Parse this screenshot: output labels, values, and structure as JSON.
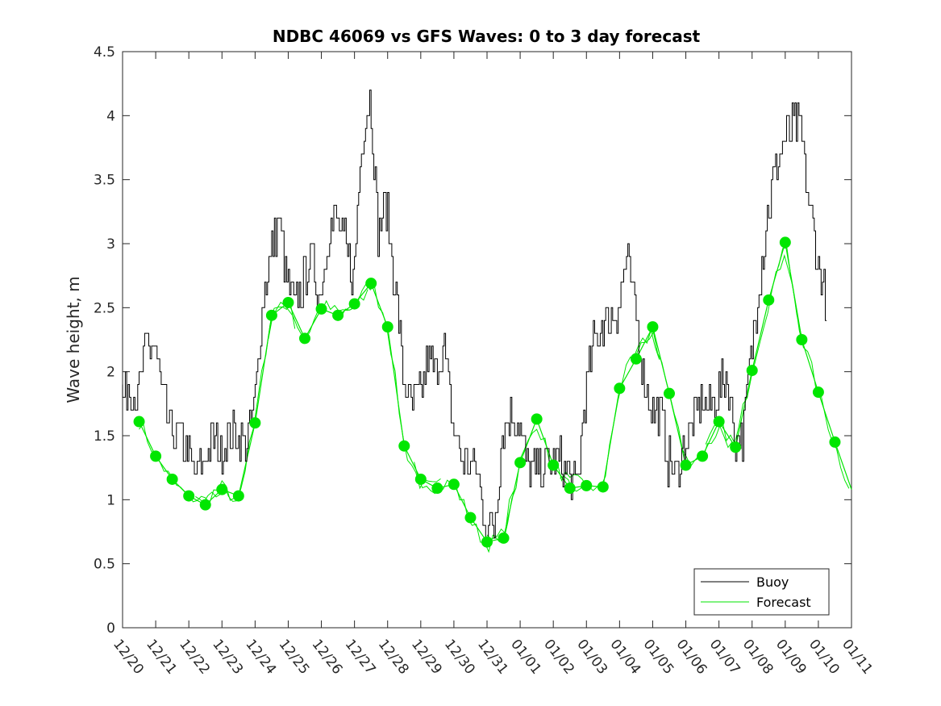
{
  "chart_data": {
    "type": "line",
    "title": "NDBC 46069 vs GFS Waves: 0 to 3 day forecast",
    "xlabel": "",
    "ylabel": "Wave height, m",
    "ylim": [
      0,
      4.5
    ],
    "yticks": [
      "0",
      "0.5",
      "1",
      "1.5",
      "2",
      "2.5",
      "3",
      "3.5",
      "4",
      "4.5"
    ],
    "xlim_days": [
      0,
      22
    ],
    "xticks": [
      "12/20",
      "12/21",
      "12/22",
      "12/23",
      "12/24",
      "12/25",
      "12/26",
      "12/27",
      "12/28",
      "12/29",
      "12/30",
      "12/31",
      "01/01",
      "01/02",
      "01/03",
      "01/04",
      "01/05",
      "01/06",
      "01/07",
      "01/08",
      "01/09",
      "01/10",
      "01/11"
    ],
    "legend": {
      "position": "bottom-right",
      "entries": [
        "Buoy",
        "Forecast"
      ]
    },
    "colors": {
      "buoy": "#000000",
      "forecast": "#00e600",
      "axis": "#262626"
    },
    "series": [
      {
        "name": "Buoy",
        "x": [
          0,
          0.25,
          0.5,
          0.75,
          1,
          1.25,
          1.5,
          1.75,
          2,
          2.25,
          2.5,
          2.75,
          3,
          3.25,
          3.5,
          3.75,
          4,
          4.25,
          4.5,
          4.75,
          5,
          5.25,
          5.5,
          5.75,
          6,
          6.25,
          6.5,
          6.75,
          7,
          7.25,
          7.5,
          7.75,
          8,
          8.25,
          8.5,
          8.75,
          9,
          9.25,
          9.5,
          9.75,
          10,
          10.25,
          10.5,
          10.75,
          11,
          11.25,
          11.5,
          11.75,
          12,
          12.25,
          12.5,
          12.75,
          13,
          13.25,
          13.5,
          13.75,
          14,
          14.25,
          14.5,
          14.75,
          15,
          15.25,
          15.5,
          15.75,
          16,
          16.25,
          16.5,
          16.75,
          17,
          17.25,
          17.5,
          17.75,
          18,
          18.25,
          18.5,
          18.75,
          19,
          19.25,
          19.5,
          19.75,
          20,
          20.25,
          20.5,
          20.75,
          21,
          21.25
        ],
        "values": [
          1.8,
          1.9,
          1.8,
          2.2,
          2.2,
          1.8,
          1.5,
          1.5,
          1.4,
          1.2,
          1.3,
          1.5,
          1.4,
          1.5,
          1.5,
          1.4,
          1.7,
          2.5,
          2.9,
          3.2,
          2.7,
          2.5,
          2.7,
          2.9,
          2.6,
          3.1,
          3.2,
          3.0,
          2.7,
          3.8,
          4.2,
          3.1,
          3.3,
          2.7,
          2.0,
          1.7,
          1.8,
          2.1,
          2.0,
          2.2,
          1.6,
          1.3,
          1.3,
          1.2,
          0.8,
          0.8,
          1.5,
          1.7,
          1.6,
          1.3,
          1.2,
          1.3,
          1.3,
          1.3,
          1.2,
          1.1,
          1.8,
          2.2,
          2.4,
          2.4,
          2.5,
          2.9,
          2.5,
          2.0,
          1.7,
          1.7,
          1.3,
          1.2,
          1.4,
          1.6,
          1.8,
          1.7,
          1.8,
          2.0,
          1.5,
          1.5,
          2.1,
          2.7,
          3.2,
          3.6,
          3.8,
          3.9,
          3.9,
          3.3,
          2.9,
          2.6
        ]
      },
      {
        "name": "Forecast",
        "x": [
          0.5,
          1,
          1.5,
          2,
          2.5,
          3,
          3.5,
          4,
          4.5,
          5,
          5.5,
          6,
          6.5,
          7,
          7.5,
          8,
          8.5,
          9,
          9.5,
          10,
          10.5,
          11,
          11.5,
          12,
          12.5,
          13,
          13.5,
          14,
          14.5,
          15,
          15.5,
          16,
          16.5,
          17,
          17.5,
          18,
          18.5,
          19,
          19.5,
          20,
          20.5,
          21,
          21.5,
          22
        ],
        "values": [
          1.61,
          1.34,
          1.16,
          1.03,
          0.96,
          1.08,
          1.03,
          1.6,
          2.44,
          2.54,
          2.26,
          2.49,
          2.44,
          2.53,
          2.69,
          2.35,
          1.42,
          1.16,
          1.09,
          1.12,
          0.86,
          0.67,
          0.7,
          1.29,
          1.63,
          1.27,
          1.09,
          1.11,
          1.1,
          1.87,
          2.1,
          2.35,
          1.83,
          1.27,
          1.34,
          1.61,
          1.41,
          2.01,
          2.56,
          3.01,
          2.25,
          1.84,
          1.45,
          1.08
        ]
      }
    ]
  }
}
